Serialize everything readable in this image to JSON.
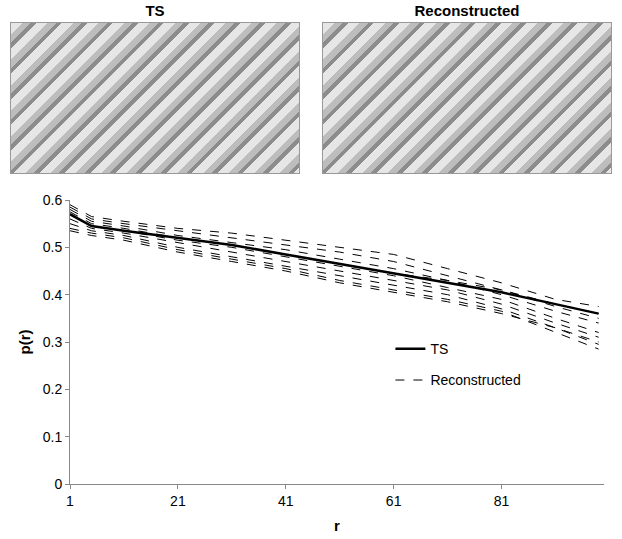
{
  "images": [
    {
      "title": "TS"
    },
    {
      "title": "Reconstructed"
    }
  ],
  "chart_data": {
    "type": "line",
    "x_label": "r",
    "y_label": "p(r)",
    "x": [
      1,
      5,
      11,
      21,
      31,
      41,
      51,
      61,
      71,
      81,
      91,
      99
    ],
    "xlim": [
      1,
      100
    ],
    "xticks": [
      1,
      21,
      41,
      61,
      81
    ],
    "ylim": [
      0,
      0.6
    ],
    "yticks": [
      0,
      0.1,
      0.2,
      0.3,
      0.4,
      0.5,
      0.6
    ],
    "grid": false,
    "legend": "right",
    "series": [
      {
        "name": "TS",
        "color": "#000000",
        "line_style": "solid",
        "values": [
          0.57,
          0.545,
          0.535,
          0.52,
          0.505,
          0.485,
          0.465,
          0.445,
          0.425,
          0.405,
          0.38,
          0.36
        ]
      },
      {
        "name": "Reconstructed",
        "color": "#000000",
        "line_style": "dash",
        "values": [
          0.59,
          0.565,
          0.555,
          0.54,
          0.53,
          0.515,
          0.5,
          0.485,
          0.455,
          0.425,
          0.39,
          0.375
        ]
      },
      {
        "name": "Reconstructed",
        "color": "#000000",
        "line_style": "dash",
        "values": [
          0.585,
          0.56,
          0.55,
          0.535,
          0.52,
          0.505,
          0.49,
          0.47,
          0.44,
          0.41,
          0.38,
          0.36
        ]
      },
      {
        "name": "Reconstructed",
        "color": "#000000",
        "line_style": "dash",
        "values": [
          0.58,
          0.555,
          0.545,
          0.525,
          0.51,
          0.495,
          0.475,
          0.455,
          0.43,
          0.4,
          0.365,
          0.34
        ]
      },
      {
        "name": "Reconstructed",
        "color": "#000000",
        "line_style": "dash",
        "values": [
          0.575,
          0.55,
          0.54,
          0.52,
          0.505,
          0.485,
          0.465,
          0.445,
          0.43,
          0.41,
          0.375,
          0.35
        ]
      },
      {
        "name": "Reconstructed",
        "color": "#000000",
        "line_style": "dash",
        "values": [
          0.57,
          0.545,
          0.535,
          0.515,
          0.5,
          0.48,
          0.46,
          0.44,
          0.415,
          0.39,
          0.35,
          0.32
        ]
      },
      {
        "name": "Reconstructed",
        "color": "#000000",
        "line_style": "dash",
        "values": [
          0.56,
          0.54,
          0.53,
          0.51,
          0.49,
          0.47,
          0.45,
          0.43,
          0.41,
          0.38,
          0.34,
          0.31
        ]
      },
      {
        "name": "Reconstructed",
        "color": "#000000",
        "line_style": "dash",
        "values": [
          0.55,
          0.535,
          0.525,
          0.5,
          0.48,
          0.46,
          0.44,
          0.42,
          0.4,
          0.37,
          0.33,
          0.295
        ]
      },
      {
        "name": "Reconstructed",
        "color": "#000000",
        "line_style": "dash",
        "values": [
          0.54,
          0.53,
          0.52,
          0.495,
          0.475,
          0.455,
          0.43,
          0.41,
          0.39,
          0.365,
          0.32,
          0.285
        ]
      },
      {
        "name": "Reconstructed",
        "color": "#000000",
        "line_style": "dash",
        "values": [
          0.535,
          0.525,
          0.515,
          0.49,
          0.47,
          0.45,
          0.425,
          0.405,
          0.385,
          0.36,
          0.33,
          0.3
        ]
      }
    ]
  }
}
